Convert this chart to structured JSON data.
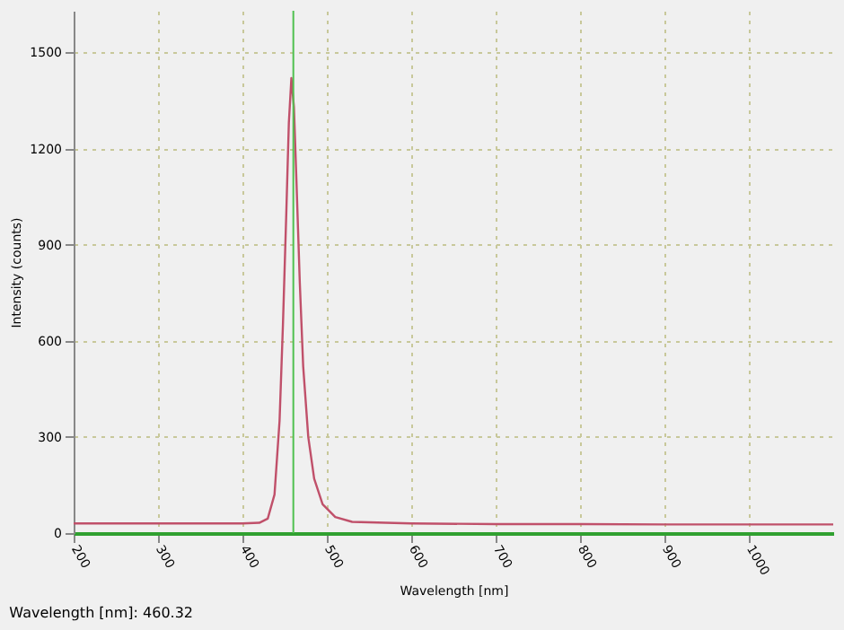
{
  "chart_data": {
    "type": "line",
    "xlabel": "Wavelength [nm]",
    "ylabel": "Intensity (counts)",
    "x": [
      200,
      300,
      400,
      420,
      430,
      438,
      444,
      448,
      452,
      455,
      458,
      461,
      464,
      468,
      472,
      478,
      485,
      495,
      510,
      530,
      600,
      700,
      800,
      900,
      1000,
      1100
    ],
    "series": [
      {
        "color": "#c0506a",
        "values": [
          30,
          30,
          30,
          32,
          45,
          120,
          350,
          650,
          1000,
          1280,
          1420,
          1330,
          1100,
          780,
          520,
          300,
          170,
          90,
          50,
          35,
          30,
          28,
          28,
          27,
          27,
          27
        ]
      }
    ],
    "xlim": [
      200,
      1100
    ],
    "xticks": [
      200,
      300,
      400,
      500,
      600,
      700,
      800,
      900,
      1000
    ],
    "ylim": [
      0,
      1630
    ],
    "yticks": [
      0,
      300,
      600,
      900,
      1200,
      1500
    ],
    "grid": true,
    "marker": "none",
    "line_style": "solid",
    "ref_lines": [
      {
        "axis": "x",
        "value": 460.32,
        "color": "#50c050"
      }
    ],
    "annotations": [
      "Wavelength [nm]: 460.32"
    ]
  }
}
